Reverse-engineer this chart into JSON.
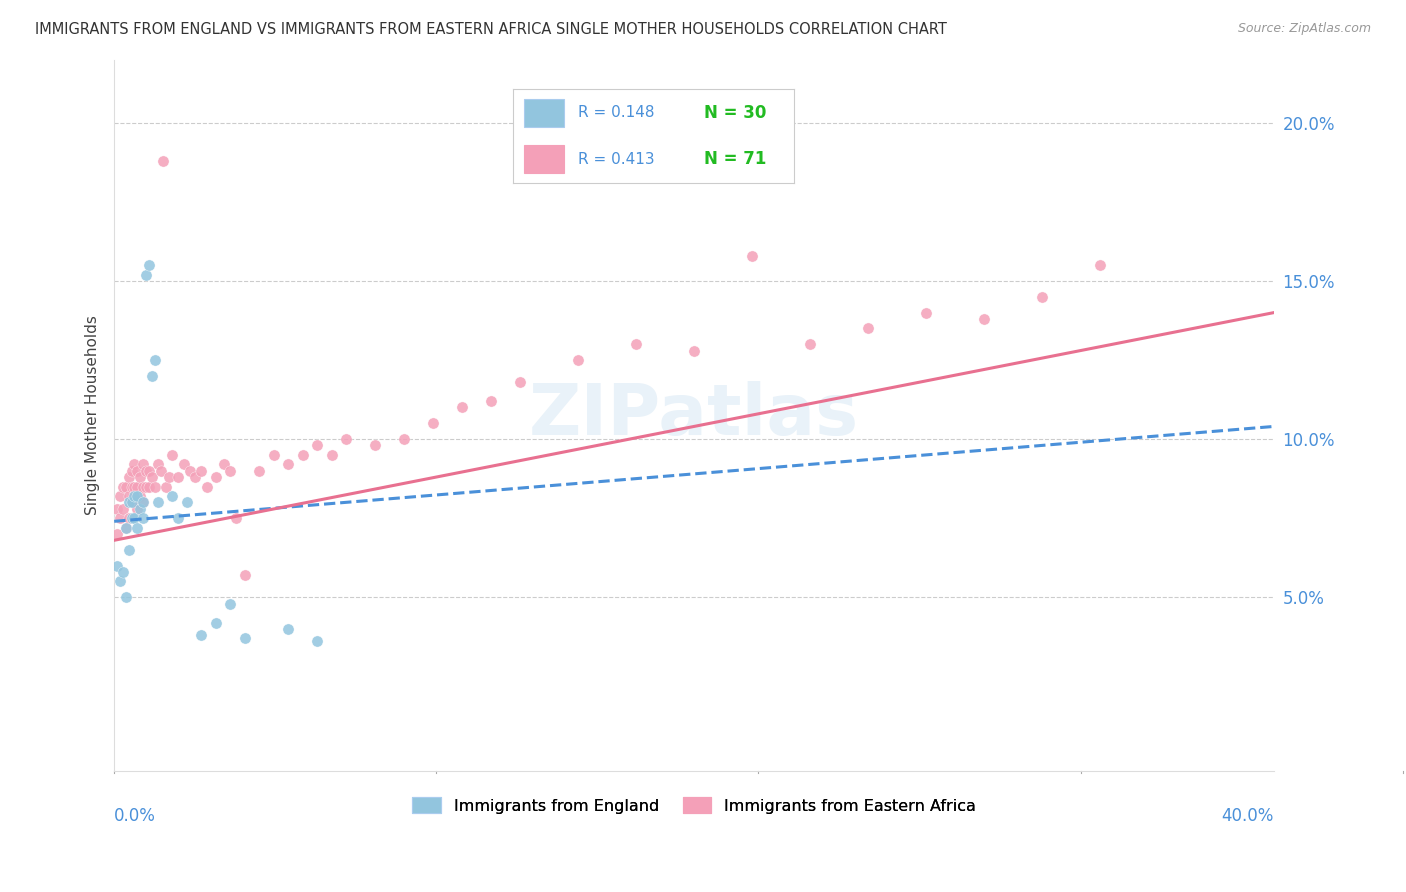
{
  "title": "IMMIGRANTS FROM ENGLAND VS IMMIGRANTS FROM EASTERN AFRICA SINGLE MOTHER HOUSEHOLDS CORRELATION CHART",
  "source": "Source: ZipAtlas.com",
  "ylabel": "Single Mother Households",
  "color_england": "#92c5de",
  "color_africa": "#f4a0b8",
  "color_england_line": "#4a90d9",
  "color_africa_line": "#e87090",
  "watermark": "ZIPatlas",
  "legend_england_R": "R = 0.148",
  "legend_england_N": "N = 30",
  "legend_africa_R": "R = 0.413",
  "legend_africa_N": "N = 71",
  "england_x": [
    0.001,
    0.002,
    0.003,
    0.004,
    0.004,
    0.005,
    0.005,
    0.006,
    0.006,
    0.007,
    0.007,
    0.008,
    0.008,
    0.009,
    0.01,
    0.01,
    0.011,
    0.012,
    0.013,
    0.014,
    0.015,
    0.02,
    0.022,
    0.025,
    0.03,
    0.035,
    0.04,
    0.045,
    0.06,
    0.07
  ],
  "england_y": [
    0.06,
    0.055,
    0.058,
    0.072,
    0.05,
    0.065,
    0.08,
    0.075,
    0.08,
    0.082,
    0.075,
    0.072,
    0.082,
    0.078,
    0.075,
    0.08,
    0.152,
    0.155,
    0.12,
    0.125,
    0.08,
    0.082,
    0.075,
    0.08,
    0.038,
    0.042,
    0.048,
    0.037,
    0.04,
    0.036
  ],
  "africa_x": [
    0.001,
    0.001,
    0.002,
    0.002,
    0.003,
    0.003,
    0.004,
    0.004,
    0.005,
    0.005,
    0.005,
    0.006,
    0.006,
    0.006,
    0.007,
    0.007,
    0.007,
    0.008,
    0.008,
    0.008,
    0.009,
    0.009,
    0.01,
    0.01,
    0.01,
    0.011,
    0.011,
    0.012,
    0.012,
    0.013,
    0.014,
    0.015,
    0.016,
    0.017,
    0.018,
    0.019,
    0.02,
    0.022,
    0.024,
    0.026,
    0.028,
    0.03,
    0.032,
    0.035,
    0.038,
    0.04,
    0.042,
    0.045,
    0.05,
    0.055,
    0.06,
    0.065,
    0.07,
    0.075,
    0.08,
    0.09,
    0.1,
    0.11,
    0.12,
    0.13,
    0.14,
    0.16,
    0.18,
    0.2,
    0.22,
    0.24,
    0.26,
    0.28,
    0.3,
    0.32,
    0.34
  ],
  "africa_y": [
    0.07,
    0.078,
    0.075,
    0.082,
    0.085,
    0.078,
    0.085,
    0.072,
    0.082,
    0.088,
    0.075,
    0.08,
    0.085,
    0.09,
    0.08,
    0.085,
    0.092,
    0.078,
    0.085,
    0.09,
    0.082,
    0.088,
    0.08,
    0.085,
    0.092,
    0.085,
    0.09,
    0.085,
    0.09,
    0.088,
    0.085,
    0.092,
    0.09,
    0.188,
    0.085,
    0.088,
    0.095,
    0.088,
    0.092,
    0.09,
    0.088,
    0.09,
    0.085,
    0.088,
    0.092,
    0.09,
    0.075,
    0.057,
    0.09,
    0.095,
    0.092,
    0.095,
    0.098,
    0.095,
    0.1,
    0.098,
    0.1,
    0.105,
    0.11,
    0.112,
    0.118,
    0.125,
    0.13,
    0.128,
    0.158,
    0.13,
    0.135,
    0.14,
    0.138,
    0.145,
    0.155
  ],
  "xlim": [
    0.0,
    0.4
  ],
  "ylim": [
    -0.005,
    0.22
  ],
  "yticks": [
    0.05,
    0.1,
    0.15,
    0.2
  ],
  "ytick_labels": [
    "5.0%",
    "10.0%",
    "15.0%",
    "20.0%"
  ],
  "background_color": "#ffffff",
  "grid_color": "#cccccc"
}
